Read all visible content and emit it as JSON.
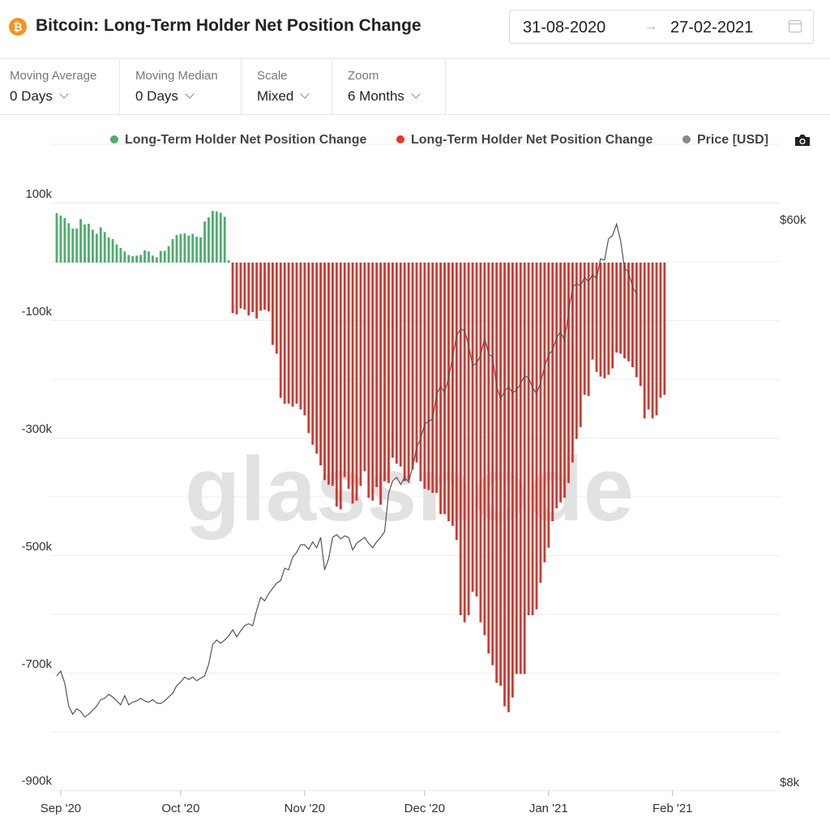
{
  "header": {
    "title": "Bitcoin: Long-Term Holder Net Position Change",
    "date_from": "31-08-2020",
    "date_arrow": "→",
    "date_to": "27-02-2021"
  },
  "controls": [
    {
      "label": "Moving Average",
      "value": "0 Days"
    },
    {
      "label": "Moving Median",
      "value": "0 Days"
    },
    {
      "label": "Scale",
      "value": "Mixed"
    },
    {
      "label": "Zoom",
      "value": "6 Months"
    }
  ],
  "legend": [
    {
      "label": "Long-Term Holder Net Position Change",
      "color": "#4caf6a"
    },
    {
      "label": "Long-Term Holder Net Position Change",
      "color": "#e53935"
    },
    {
      "label": "Price [USD]",
      "color": "#888888"
    }
  ],
  "watermark": "glassnode",
  "colors": {
    "positive": "#4caf6a",
    "negative": "#d9342b",
    "price": "#555555",
    "grid": "#ececec"
  },
  "chart_data": {
    "type": "bar",
    "x_start": "2020-08-31",
    "x_end": "2021-02-27",
    "x_ticks": [
      "Sep '20",
      "Oct '20",
      "Nov '20",
      "Dec '20",
      "Jan '21",
      "Feb '21"
    ],
    "y_ticks": [
      "100k",
      "-100k",
      "-300k",
      "-500k",
      "-700k",
      "-900k"
    ],
    "ylim": [
      -900000,
      100000
    ],
    "y2_ticks": [
      "$60k",
      "$8k"
    ],
    "y2_scale": "log",
    "series": [
      {
        "name": "Long-Term Holder Net Position Change",
        "axis": "left",
        "values": [
          84000,
          80000,
          76000,
          67000,
          58000,
          58000,
          74000,
          65000,
          66000,
          56000,
          49000,
          60000,
          52000,
          43000,
          40000,
          31000,
          25000,
          19000,
          13000,
          11000,
          12000,
          13000,
          21000,
          19000,
          12000,
          9000,
          20000,
          20000,
          28000,
          40000,
          47000,
          49000,
          50000,
          46000,
          49000,
          44000,
          43000,
          70000,
          77000,
          88000,
          87000,
          85000,
          78000,
          4000,
          -86000,
          -88000,
          -78000,
          -80000,
          -90000,
          -84000,
          -95000,
          -82000,
          -80000,
          -83000,
          -140000,
          -155000,
          -230000,
          -240000,
          -240000,
          -245000,
          -240000,
          -250000,
          -260000,
          -290000,
          -310000,
          -325000,
          -345000,
          -370000,
          -378000,
          -380000,
          -415000,
          -420000,
          -365000,
          -385000,
          -410000,
          -405000,
          -380000,
          -355000,
          -400000,
          -405000,
          -382000,
          -412000,
          -372000,
          -375000,
          -332000,
          -342000,
          -347000,
          -372000,
          -370000,
          -352000,
          -340000,
          -372000,
          -385000,
          -387000,
          -392000,
          -392000,
          -428000,
          -428000,
          -440000,
          -448000,
          -472000,
          -600000,
          -612000,
          -600000,
          -560000,
          -568000,
          -612000,
          -634000,
          -665000,
          -685000,
          -715000,
          -720000,
          -755000,
          -765000,
          -740000,
          -700000,
          -700000,
          -700000,
          -600000,
          -600000,
          -590000,
          -545000,
          -510000,
          -485000,
          -440000,
          -418000,
          -408000,
          -400000,
          -375000,
          -340000,
          -300000,
          -280000,
          -225000,
          -227000,
          -165000,
          -186000,
          -194000,
          -197000,
          -191000,
          -180000,
          -153000,
          -155000,
          -163000,
          -168000,
          -178000,
          -195000,
          -210000,
          -265000,
          -250000,
          -265000,
          -260000,
          -230000,
          -225000
        ]
      },
      {
        "name": "Price [USD]",
        "axis": "right",
        "values": [
          11700,
          11900,
          11400,
          10500,
          10200,
          10400,
          10300,
          10100,
          10200,
          10350,
          10500,
          10750,
          10800,
          10950,
          10850,
          10700,
          10550,
          10900,
          10550,
          10650,
          10700,
          10800,
          10700,
          10650,
          10750,
          10620,
          10600,
          10700,
          10850,
          11000,
          11300,
          11450,
          11650,
          11550,
          11650,
          11500,
          11600,
          11700,
          12200,
          13100,
          13300,
          13150,
          13300,
          13500,
          13800,
          13450,
          13750,
          14000,
          14100,
          14000,
          14800,
          15500,
          15300,
          15700,
          16000,
          16300,
          16450,
          17200,
          17100,
          17900,
          18200,
          18700,
          18700,
          18400,
          18900,
          18500,
          19200,
          17100,
          17800,
          19200,
          19400,
          19100,
          19300,
          19200,
          18350,
          18800,
          19000,
          19200,
          18800,
          18500,
          18900,
          19200,
          19600,
          22500,
          23500,
          23800,
          23200,
          23800,
          23400,
          24700,
          26500,
          27300,
          28800,
          29100,
          29300,
          32000,
          33000,
          32200,
          34000,
          36600,
          39500,
          40500,
          40200,
          38200,
          35500,
          35800,
          36800,
          39200,
          37000,
          36600,
          33000,
          31500,
          32400,
          32900,
          32200,
          32500,
          33300,
          34200,
          34000,
          32800,
          32100,
          33400,
          35400,
          36900,
          37500,
          39200,
          40100,
          38800,
          43000,
          47000,
          47600,
          47200,
          48700,
          47900,
          49200,
          48400,
          52000,
          51800,
          55900,
          56500,
          58900,
          55600,
          50300,
          49600,
          47000,
          45900
        ]
      }
    ]
  }
}
